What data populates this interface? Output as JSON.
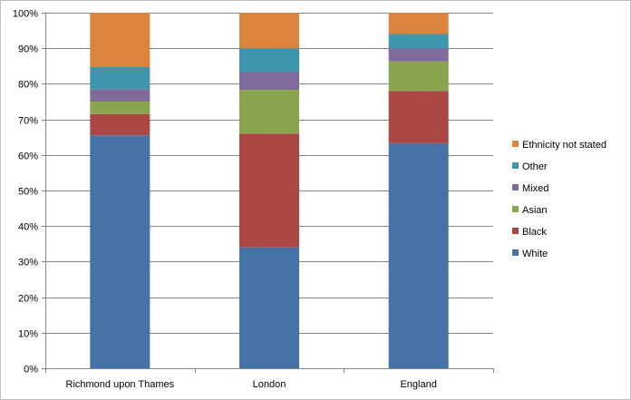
{
  "chart_data": {
    "type": "bar",
    "stacked": true,
    "categories": [
      "Richmond upon Thames",
      "London",
      "England"
    ],
    "series": [
      {
        "name": "White",
        "color": "#4572A7",
        "values": [
          65.5,
          34,
          63.3
        ]
      },
      {
        "name": "Black",
        "color": "#AA4643",
        "values": [
          6,
          32,
          14.7
        ]
      },
      {
        "name": "Asian",
        "color": "#89A54E",
        "values": [
          3.5,
          12.3,
          8.3
        ]
      },
      {
        "name": "Mixed",
        "color": "#80699B",
        "values": [
          3.5,
          5,
          3.7
        ]
      },
      {
        "name": "Other",
        "color": "#3D96AE",
        "values": [
          6.2,
          6.7,
          4
        ]
      },
      {
        "name": "Ethnicity not stated",
        "color": "#DB843D",
        "values": [
          15.3,
          10,
          6
        ]
      }
    ],
    "yticks": [
      "0%",
      "10%",
      "20%",
      "30%",
      "40%",
      "50%",
      "60%",
      "70%",
      "80%",
      "90%",
      "100%"
    ],
    "ylim": [
      0,
      100
    ],
    "grid": true,
    "legend_position": "right",
    "title": "",
    "xlabel": "",
    "ylabel": ""
  }
}
